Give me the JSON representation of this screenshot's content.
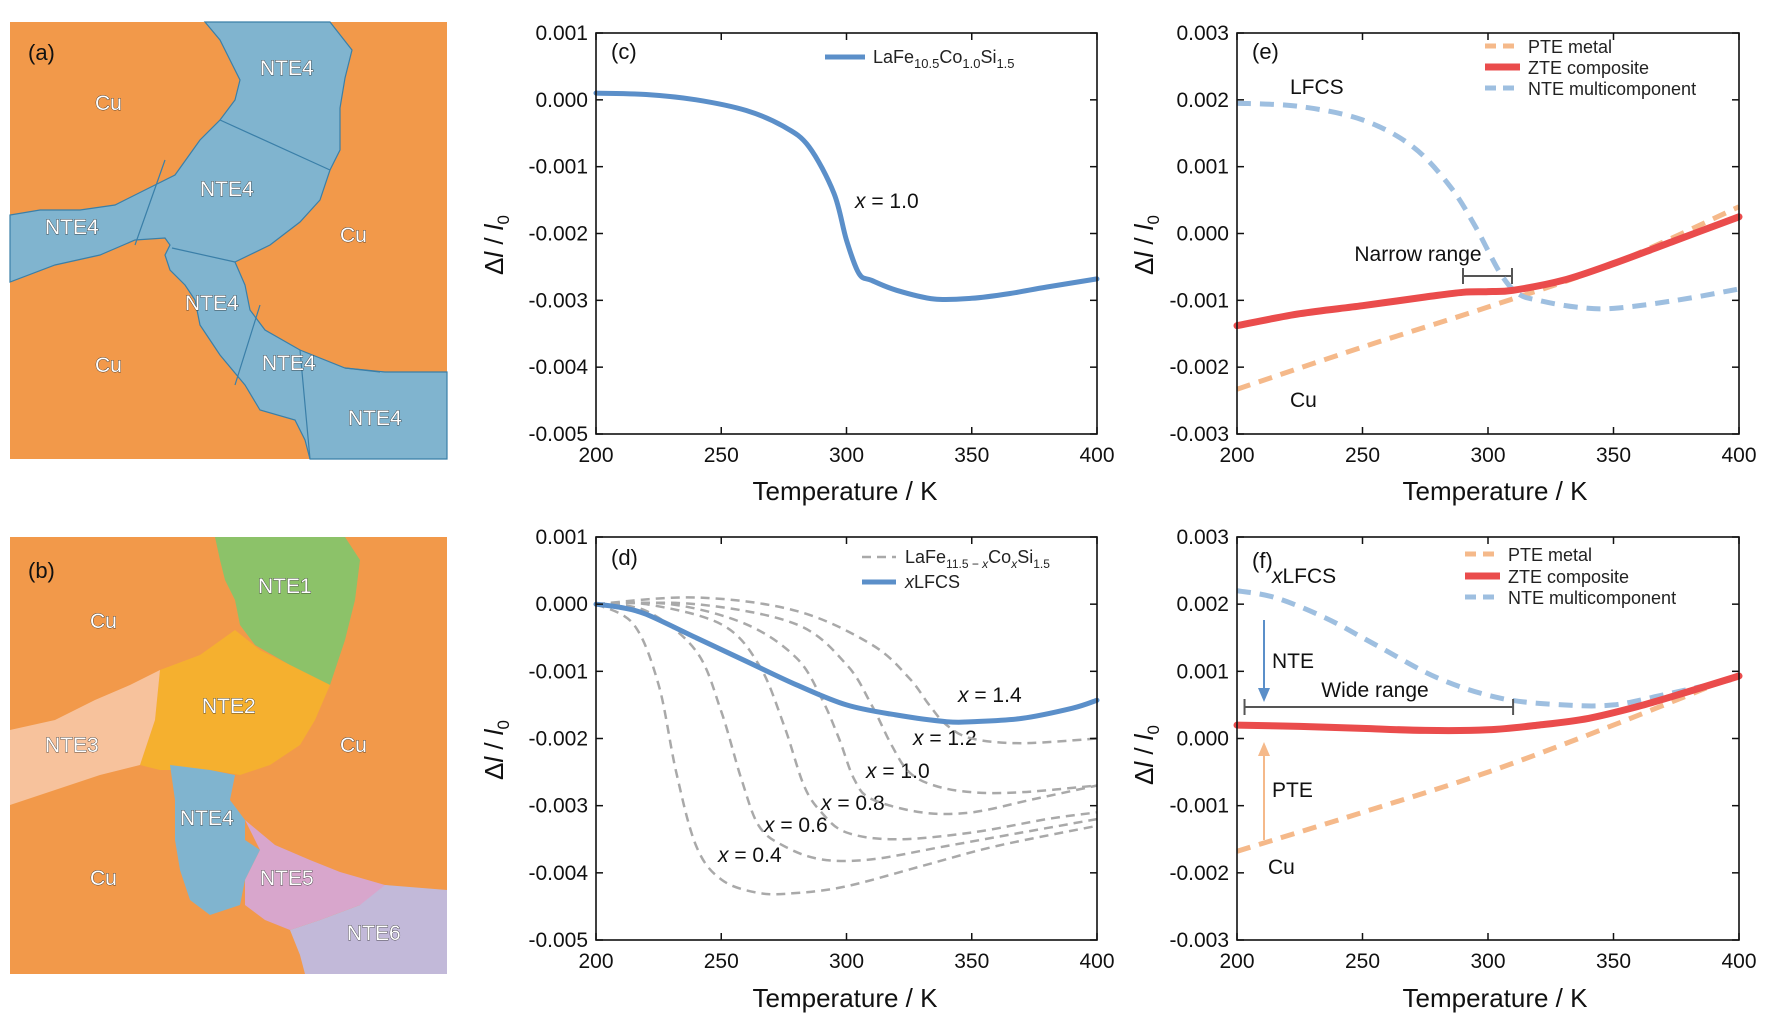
{
  "colors": {
    "cu": "#f2994a",
    "nte4": "#80b4cf",
    "nte1": "#8cc269",
    "nte2": "#f5b02f",
    "nte3": "#f7c29c",
    "nte5": "#d8a6cc",
    "nte6": "#c2b9d9",
    "lfcs_line": "#5b8fc9",
    "lfcs_text": "#2e6d9f",
    "pte": "#f5b98a",
    "pte_text": "#f0a269",
    "zte": "#ea4c4c",
    "nte_dash": "#9ebfe0",
    "gray": "#a9a9a9"
  },
  "microstructures": {
    "a": {
      "label": "(a)",
      "cu_labels": [
        "Cu",
        "Cu",
        "Cu"
      ],
      "nte_labels": [
        "NTE4",
        "NTE4",
        "NTE4",
        "NTE4",
        "NTE4",
        "NTE4"
      ]
    },
    "b": {
      "label": "(b)",
      "cu_labels": [
        "Cu",
        "Cu",
        "Cu"
      ],
      "nte_labels": [
        "NTE1",
        "NTE2",
        "NTE3",
        "NTE4",
        "NTE5",
        "NTE6"
      ]
    }
  },
  "axes": {
    "xlabel": "Temperature / K",
    "ylabel_top": "Δl / l0",
    "x_ticks": [
      "200",
      "250",
      "300",
      "350",
      "400"
    ],
    "y_ticks_cd": [
      "0.001",
      "0.000",
      "-0.001",
      "-0.002",
      "-0.003",
      "-0.004",
      "-0.005"
    ],
    "y_ticks_ef": [
      "0.003",
      "0.002",
      "0.001",
      "0.000",
      "-0.001",
      "-0.002",
      "-0.003"
    ]
  },
  "chart_data": [
    {
      "panel": "(c)",
      "type": "line",
      "xlabel": "Temperature / K",
      "ylabel": "Δl / l0",
      "xlim": [
        200,
        400
      ],
      "ylim": [
        -0.005,
        0.001
      ],
      "legend": {
        "placement": "top-right",
        "entries": [
          {
            "name": "LaFe10.5Co1.0Si1.5",
            "style": "solid"
          }
        ]
      },
      "annotations": [
        {
          "text": "x = 1.0"
        }
      ],
      "series": [
        {
          "name": "LaFe10.5Co1.0Si1.5",
          "style": "solid",
          "x": [
            200,
            220,
            240,
            260,
            275,
            285,
            295,
            300,
            305,
            310,
            320,
            335,
            350,
            365,
            380,
            400
          ],
          "y": [
            0.0001,
            8e-05,
            0.0,
            -0.00016,
            -0.0004,
            -0.0007,
            -0.0014,
            -0.0021,
            -0.0026,
            -0.0027,
            -0.00285,
            -0.00298,
            -0.00297,
            -0.0029,
            -0.0028,
            -0.00268
          ]
        }
      ]
    },
    {
      "panel": "(d)",
      "type": "line",
      "xlabel": "Temperature / K",
      "ylabel": "Δl / l0",
      "xlim": [
        200,
        400
      ],
      "ylim": [
        -0.005,
        0.001
      ],
      "legend": {
        "placement": "top-right",
        "entries": [
          {
            "name": "LaFe11.5−xCoxSi1.5",
            "style": "dashed"
          },
          {
            "name": "xLFCS",
            "style": "solid"
          }
        ]
      },
      "series": [
        {
          "name": "x = 0.4",
          "style": "dashed",
          "x": [
            200,
            215,
            225,
            232,
            240,
            250,
            265,
            280,
            300,
            330,
            360,
            400
          ],
          "y": [
            0.0,
            -0.0003,
            -0.0012,
            -0.0025,
            -0.0036,
            -0.0041,
            -0.0043,
            -0.0043,
            -0.0042,
            -0.0039,
            -0.0036,
            -0.0033
          ]
        },
        {
          "name": "x = 0.6",
          "style": "dashed",
          "x": [
            200,
            220,
            240,
            250,
            258,
            265,
            275,
            290,
            310,
            340,
            370,
            400
          ],
          "y": [
            0.0,
            -0.0001,
            -0.0007,
            -0.0016,
            -0.0026,
            -0.0033,
            -0.0036,
            -0.0038,
            -0.0038,
            -0.0036,
            -0.0034,
            -0.0032
          ]
        },
        {
          "name": "x = 0.8",
          "style": "dashed",
          "x": [
            200,
            220,
            250,
            265,
            275,
            283,
            290,
            300,
            320,
            350,
            380,
            400
          ],
          "y": [
            0.0,
            0.0,
            -0.0003,
            -0.0009,
            -0.0018,
            -0.0027,
            -0.0031,
            -0.0034,
            -0.0035,
            -0.0034,
            -0.0032,
            -0.0031
          ]
        },
        {
          "name": "x = 1.0",
          "style": "dashed",
          "x": [
            200,
            230,
            260,
            280,
            290,
            297,
            303,
            310,
            330,
            350,
            375,
            400
          ],
          "y": [
            0.0,
            0.0,
            -0.0003,
            -0.0008,
            -0.0014,
            -0.002,
            -0.0026,
            -0.0029,
            -0.0031,
            -0.0031,
            -0.0029,
            -0.0027
          ]
        },
        {
          "name": "x = 1.2",
          "style": "dashed",
          "x": [
            200,
            240,
            280,
            300,
            310,
            318,
            325,
            335,
            350,
            370,
            400
          ],
          "y": [
            0.0,
            0.0,
            -0.0003,
            -0.0009,
            -0.0015,
            -0.0021,
            -0.0025,
            -0.0027,
            -0.0028,
            -0.0028,
            -0.0027
          ]
        },
        {
          "name": "x = 1.4",
          "style": "dashed",
          "x": [
            200,
            240,
            280,
            310,
            325,
            333,
            340,
            350,
            370,
            400
          ],
          "y": [
            0.0,
            0.0001,
            -0.0001,
            -0.0006,
            -0.0011,
            -0.0015,
            -0.0018,
            -0.002,
            -0.00207,
            -0.002
          ]
        },
        {
          "name": "xLFCS",
          "style": "solid",
          "x": [
            200,
            210,
            220,
            240,
            260,
            280,
            300,
            320,
            340,
            350,
            370,
            390,
            400
          ],
          "y": [
            0.0,
            -5e-05,
            -0.00015,
            -0.0005,
            -0.00085,
            -0.0012,
            -0.0015,
            -0.00165,
            -0.00175,
            -0.00175,
            -0.0017,
            -0.00155,
            -0.00143
          ]
        }
      ],
      "annotations": [
        {
          "text": "x = 1.4"
        },
        {
          "text": "x = 1.2"
        },
        {
          "text": "x = 1.0"
        },
        {
          "text": "x = 0.8"
        },
        {
          "text": "x = 0.6"
        },
        {
          "text": "x = 0.4"
        }
      ]
    },
    {
      "panel": "(e)",
      "type": "line",
      "xlabel": "Temperature / K",
      "ylabel": "Δl / l0",
      "xlim": [
        200,
        400
      ],
      "ylim": [
        -0.003,
        0.003
      ],
      "legend": {
        "placement": "top-right",
        "entries": [
          {
            "name": "PTE metal",
            "style": "dashed"
          },
          {
            "name": "ZTE composite",
            "style": "solid"
          },
          {
            "name": "NTE multicomponent",
            "style": "dashed"
          }
        ]
      },
      "annotations": [
        {
          "text": "LFCS"
        },
        {
          "text": "Cu"
        },
        {
          "text": "Narrow range",
          "range": [
            288,
            308
          ]
        }
      ],
      "series": [
        {
          "name": "PTE metal",
          "style": "dashed",
          "x": [
            200,
            250,
            300,
            350,
            400
          ],
          "y": [
            -0.00233,
            -0.0017,
            -0.0011,
            -0.00045,
            0.0004
          ]
        },
        {
          "name": "ZTE composite",
          "style": "solid",
          "x": [
            200,
            225,
            250,
            275,
            290,
            300,
            310,
            330,
            350,
            375,
            400
          ],
          "y": [
            -0.00138,
            -0.0012,
            -0.00108,
            -0.00095,
            -0.00088,
            -0.00087,
            -0.00085,
            -0.0007,
            -0.00045,
            -0.0001,
            0.00025
          ]
        },
        {
          "name": "NTE multicomponent",
          "style": "dashed",
          "x": [
            200,
            225,
            250,
            270,
            285,
            295,
            305,
            312,
            320,
            335,
            350,
            375,
            400
          ],
          "y": [
            0.00195,
            0.0019,
            0.0017,
            0.0013,
            0.0007,
            0.0001,
            -0.0006,
            -0.0009,
            -0.001,
            -0.0011,
            -0.00112,
            -0.001,
            -0.00083
          ]
        }
      ]
    },
    {
      "panel": "(f)",
      "type": "line",
      "xlabel": "Temperature / K",
      "ylabel": "Δl / l0",
      "xlim": [
        200,
        400
      ],
      "ylim": [
        -0.003,
        0.003
      ],
      "legend": {
        "placement": "top-right",
        "entries": [
          {
            "name": "PTE metal",
            "style": "dashed"
          },
          {
            "name": "ZTE composite",
            "style": "solid"
          },
          {
            "name": "NTE multicomponent",
            "style": "dashed"
          }
        ]
      },
      "annotations": [
        {
          "text": "xLFCS"
        },
        {
          "text": "NTE"
        },
        {
          "text": "PTE"
        },
        {
          "text": "Cu"
        },
        {
          "text": "Wide range",
          "range": [
            203,
            310
          ]
        }
      ],
      "series": [
        {
          "name": "PTE metal",
          "style": "dashed",
          "x": [
            200,
            250,
            300,
            350,
            400
          ],
          "y": [
            -0.00168,
            -0.0011,
            -0.0005,
            0.0002,
            0.00095
          ]
        },
        {
          "name": "ZTE composite",
          "style": "solid",
          "x": [
            200,
            225,
            250,
            275,
            300,
            320,
            340,
            360,
            380,
            400
          ],
          "y": [
            0.0002,
            0.00018,
            0.00015,
            0.00012,
            0.00013,
            0.0002,
            0.0003,
            0.00048,
            0.0007,
            0.00093
          ]
        },
        {
          "name": "NTE multicomponent",
          "style": "dashed",
          "x": [
            200,
            215,
            235,
            255,
            280,
            305,
            330,
            350,
            370,
            400
          ],
          "y": [
            0.0022,
            0.0021,
            0.0018,
            0.0014,
            0.0009,
            0.0006,
            0.0005,
            0.0005,
            0.00065,
            0.0009
          ]
        }
      ]
    }
  ]
}
